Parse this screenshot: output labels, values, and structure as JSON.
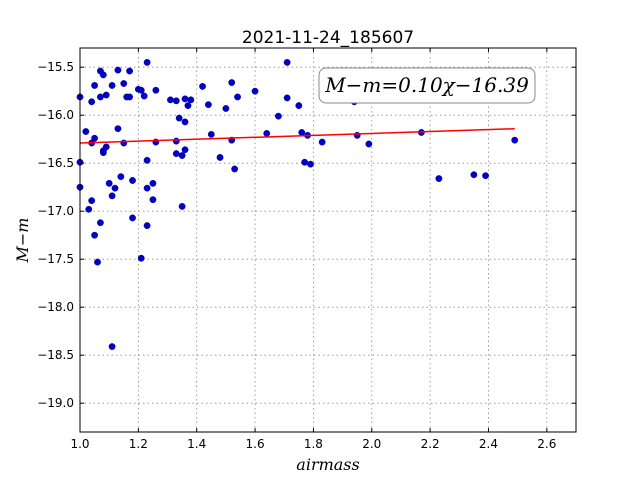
{
  "chart_data": {
    "type": "scatter",
    "title": "2021-11-24_185607",
    "xlabel": "airmass",
    "ylabel": "M−m",
    "xlim": [
      1.0,
      2.7
    ],
    "ylim": [
      -19.3,
      -15.3
    ],
    "y_inverted": true,
    "grid": true,
    "xticks": [
      1.0,
      1.2,
      1.4,
      1.6,
      1.8,
      2.0,
      2.2,
      2.4,
      2.6
    ],
    "xtick_labels": [
      "1.0",
      "1.2",
      "1.4",
      "1.6",
      "1.8",
      "2.0",
      "2.2",
      "2.4",
      "2.6"
    ],
    "yticks": [
      -15.5,
      -16.0,
      -16.5,
      -17.0,
      -17.5,
      -18.0,
      -18.5,
      -19.0
    ],
    "ytick_labels": [
      "−15.5",
      "−16.0",
      "−16.5",
      "−17.0",
      "−17.5",
      "−18.0",
      "−18.5",
      "−19.0"
    ],
    "annotation": "M−m=0.10χ−16.39",
    "annotation_position": "top-right",
    "fit": {
      "slope": 0.1,
      "intercept": -16.39,
      "x_range": [
        1.0,
        2.49
      ],
      "color": "#ff0000"
    },
    "marker_color": "#0000c8",
    "points": [
      [
        1.0,
        -15.81
      ],
      [
        1.0,
        -16.49
      ],
      [
        1.0,
        -16.75
      ],
      [
        1.02,
        -16.17
      ],
      [
        1.03,
        -16.98
      ],
      [
        1.04,
        -15.86
      ],
      [
        1.04,
        -16.29
      ],
      [
        1.04,
        -16.89
      ],
      [
        1.05,
        -16.24
      ],
      [
        1.05,
        -17.25
      ],
      [
        1.05,
        -15.69
      ],
      [
        1.06,
        -17.53
      ],
      [
        1.07,
        -15.54
      ],
      [
        1.07,
        -17.12
      ],
      [
        1.07,
        -15.81
      ],
      [
        1.08,
        -15.58
      ],
      [
        1.08,
        -16.37
      ],
      [
        1.08,
        -16.39
      ],
      [
        1.09,
        -16.33
      ],
      [
        1.09,
        -15.79
      ],
      [
        1.1,
        -16.71
      ],
      [
        1.11,
        -18.41
      ],
      [
        1.11,
        -16.84
      ],
      [
        1.11,
        -15.69
      ],
      [
        1.12,
        -16.76
      ],
      [
        1.13,
        -15.53
      ],
      [
        1.13,
        -16.14
      ],
      [
        1.14,
        -16.64
      ],
      [
        1.15,
        -16.29
      ],
      [
        1.15,
        -15.67
      ],
      [
        1.16,
        -15.81
      ],
      [
        1.17,
        -15.54
      ],
      [
        1.17,
        -15.81
      ],
      [
        1.18,
        -16.68
      ],
      [
        1.18,
        -17.07
      ],
      [
        1.2,
        -15.73
      ],
      [
        1.21,
        -17.49
      ],
      [
        1.21,
        -15.74
      ],
      [
        1.22,
        -15.8
      ],
      [
        1.23,
        -15.45
      ],
      [
        1.23,
        -16.47
      ],
      [
        1.23,
        -16.76
      ],
      [
        1.23,
        -17.15
      ],
      [
        1.25,
        -16.88
      ],
      [
        1.25,
        -16.71
      ],
      [
        1.26,
        -15.74
      ],
      [
        1.26,
        -16.28
      ],
      [
        1.31,
        -15.84
      ],
      [
        1.33,
        -15.85
      ],
      [
        1.33,
        -16.4
      ],
      [
        1.33,
        -16.27
      ],
      [
        1.34,
        -16.03
      ],
      [
        1.35,
        -16.42
      ],
      [
        1.35,
        -16.95
      ],
      [
        1.36,
        -16.07
      ],
      [
        1.36,
        -15.83
      ],
      [
        1.36,
        -16.36
      ],
      [
        1.37,
        -15.9
      ],
      [
        1.38,
        -15.84
      ],
      [
        1.42,
        -15.7
      ],
      [
        1.44,
        -15.89
      ],
      [
        1.45,
        -16.2
      ],
      [
        1.48,
        -16.44
      ],
      [
        1.5,
        -15.93
      ],
      [
        1.52,
        -15.66
      ],
      [
        1.52,
        -16.26
      ],
      [
        1.53,
        -16.56
      ],
      [
        1.54,
        -15.81
      ],
      [
        1.6,
        -15.75
      ],
      [
        1.64,
        -16.19
      ],
      [
        1.68,
        -16.01
      ],
      [
        1.71,
        -15.45
      ],
      [
        1.71,
        -15.82
      ],
      [
        1.75,
        -15.9
      ],
      [
        1.76,
        -16.18
      ],
      [
        1.77,
        -16.49
      ],
      [
        1.78,
        -16.21
      ],
      [
        1.79,
        -16.51
      ],
      [
        1.83,
        -16.28
      ],
      [
        1.94,
        -15.86
      ],
      [
        1.95,
        -16.21
      ],
      [
        1.99,
        -16.3
      ],
      [
        2.17,
        -16.18
      ],
      [
        2.23,
        -16.66
      ],
      [
        2.35,
        -16.62
      ],
      [
        2.39,
        -16.63
      ],
      [
        2.49,
        -16.26
      ]
    ]
  }
}
